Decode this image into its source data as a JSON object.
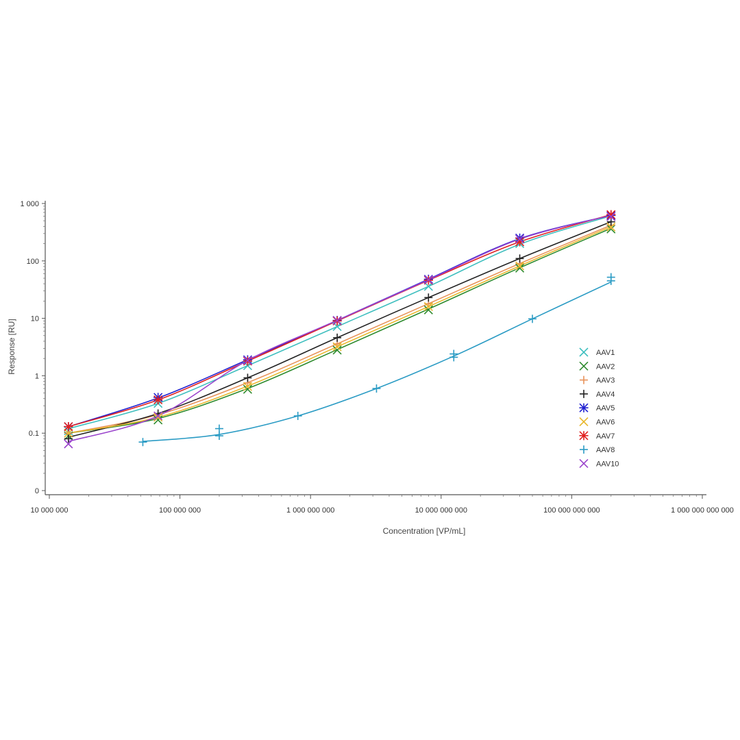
{
  "chart_data": {
    "type": "scatter",
    "xscale": "log",
    "yscale": "log",
    "xlabel": "Concentration [VP/mL]",
    "ylabel": "Response [RU]",
    "xlim": [
      10000000,
      1000000000000
    ],
    "ylim": [
      0.01,
      1000
    ],
    "x_ticks": [
      {
        "value": 10000000,
        "label": "10 000 000"
      },
      {
        "value": 100000000,
        "label": "100 000 000"
      },
      {
        "value": 1000000000,
        "label": "1 000 000 000"
      },
      {
        "value": 10000000000,
        "label": "10 000 000 000"
      },
      {
        "value": 100000000000,
        "label": "100 000 000 000"
      },
      {
        "value": 1000000000000,
        "label": "1 000 000 000 000"
      }
    ],
    "y_ticks": [
      {
        "value": 0.01,
        "label": "0"
      },
      {
        "value": 0.1,
        "label": "0.1"
      },
      {
        "value": 1,
        "label": "1"
      },
      {
        "value": 10,
        "label": "10"
      },
      {
        "value": 100,
        "label": "100"
      },
      {
        "value": 1000,
        "label": "1 000"
      }
    ],
    "legend_position": "right",
    "series": [
      {
        "name": "AAV1",
        "color": "#3fbfbf",
        "marker": "x",
        "x": [
          14000000,
          68000000,
          330000000,
          1600000000,
          8000000000,
          40000000000,
          200000000000
        ],
        "y": [
          0.11,
          0.33,
          1.5,
          7.2,
          36,
          200,
          600
        ]
      },
      {
        "name": "AAV2",
        "color": "#2e8b2e",
        "marker": "x",
        "x": [
          14000000,
          68000000,
          330000000,
          1600000000,
          8000000000,
          40000000000,
          200000000000
        ],
        "y": [
          0.09,
          0.17,
          0.58,
          2.8,
          14,
          75,
          360
        ]
      },
      {
        "name": "AAV3",
        "color": "#e8935a",
        "marker": "plus",
        "x": [
          14000000,
          68000000,
          330000000,
          1600000000,
          8000000000,
          40000000000,
          200000000000
        ],
        "y": [
          0.1,
          0.21,
          0.75,
          3.6,
          18,
          90,
          420
        ]
      },
      {
        "name": "AAV4",
        "color": "#222222",
        "marker": "plus",
        "x": [
          14000000,
          68000000,
          330000000,
          1600000000,
          8000000000,
          40000000000,
          200000000000
        ],
        "y": [
          0.08,
          0.22,
          0.92,
          4.6,
          23,
          110,
          480
        ]
      },
      {
        "name": "AAV5",
        "color": "#2020d0",
        "marker": "star",
        "x": [
          14000000,
          68000000,
          330000000,
          1600000000,
          8000000000,
          40000000000,
          200000000000
        ],
        "y": [
          0.13,
          0.42,
          1.9,
          9.2,
          48,
          250,
          620
        ]
      },
      {
        "name": "AAV6",
        "color": "#e8b830",
        "marker": "x",
        "x": [
          14000000,
          68000000,
          330000000,
          1600000000,
          8000000000,
          40000000000,
          200000000000
        ],
        "y": [
          0.1,
          0.19,
          0.65,
          3.2,
          16,
          82,
          390
        ]
      },
      {
        "name": "AAV7",
        "color": "#e02020",
        "marker": "star",
        "x": [
          14000000,
          68000000,
          330000000,
          1600000000,
          8000000000,
          40000000000,
          200000000000
        ],
        "y": [
          0.13,
          0.38,
          1.8,
          9,
          46,
          215,
          640
        ]
      },
      {
        "name": "AAV8",
        "color": "#2a9bc4",
        "marker": "plus",
        "x": [
          52000000,
          200000000,
          200000000,
          800000000,
          3200000000,
          12500000000,
          12500000000,
          50000000000,
          200000000000,
          200000000000
        ],
        "y": [
          0.07,
          0.12,
          0.09,
          0.2,
          0.6,
          2.4,
          2.1,
          9.8,
          52,
          45
        ]
      },
      {
        "name": "AAV10",
        "color": "#9a44cc",
        "marker": "x",
        "x": [
          14000000,
          68000000,
          330000000,
          1600000000,
          8000000000,
          40000000000,
          200000000000
        ],
        "y": [
          0.065,
          0.2,
          1.85,
          9.2,
          47,
          240,
          590
        ]
      }
    ],
    "fit_curves": [
      {
        "series": "AAV1",
        "color": "#3fbfbf",
        "x": [
          14000000,
          68000000,
          330000000,
          1600000000,
          8000000000,
          40000000000,
          200000000000
        ],
        "y": [
          0.12,
          0.33,
          1.5,
          7.2,
          36,
          195,
          610
        ]
      },
      {
        "series": "AAV2",
        "color": "#2e8b2e",
        "x": [
          14000000,
          68000000,
          330000000,
          1600000000,
          8000000000,
          40000000000,
          200000000000
        ],
        "y": [
          0.1,
          0.18,
          0.6,
          2.85,
          14.5,
          76,
          370
        ]
      },
      {
        "series": "AAV3",
        "color": "#e8935a",
        "x": [
          14000000,
          68000000,
          330000000,
          1600000000,
          8000000000,
          40000000000,
          200000000000
        ],
        "y": [
          0.1,
          0.21,
          0.76,
          3.6,
          18,
          90,
          420
        ]
      },
      {
        "series": "AAV4",
        "color": "#222222",
        "x": [
          14000000,
          68000000,
          330000000,
          1600000000,
          8000000000,
          40000000000,
          200000000000
        ],
        "y": [
          0.085,
          0.22,
          0.92,
          4.6,
          23,
          110,
          480
        ]
      },
      {
        "series": "AAV5",
        "color": "#2020d0",
        "x": [
          14000000,
          68000000,
          330000000,
          1600000000,
          8000000000,
          40000000000,
          200000000000
        ],
        "y": [
          0.13,
          0.41,
          1.9,
          9.2,
          48,
          245,
          620
        ]
      },
      {
        "series": "AAV6",
        "color": "#e8b830",
        "x": [
          14000000,
          68000000,
          330000000,
          1600000000,
          8000000000,
          40000000000,
          200000000000
        ],
        "y": [
          0.1,
          0.19,
          0.66,
          3.2,
          16,
          82,
          395
        ]
      },
      {
        "series": "AAV7",
        "color": "#e02020",
        "x": [
          14000000,
          68000000,
          330000000,
          1600000000,
          8000000000,
          40000000000,
          200000000000
        ],
        "y": [
          0.13,
          0.38,
          1.8,
          9,
          46,
          215,
          640
        ]
      },
      {
        "series": "AAV8",
        "color": "#2a9bc4",
        "x": [
          52000000,
          200000000,
          800000000,
          3200000000,
          12500000000,
          50000000000,
          200000000000
        ],
        "y": [
          0.072,
          0.095,
          0.2,
          0.6,
          2.2,
          9.8,
          43
        ]
      },
      {
        "series": "AAV10",
        "color": "#9a44cc",
        "x": [
          14000000,
          68000000,
          330000000,
          1600000000,
          8000000000,
          40000000000,
          200000000000
        ],
        "y": [
          0.072,
          0.2,
          1.85,
          9.2,
          47,
          240,
          620
        ]
      }
    ]
  }
}
